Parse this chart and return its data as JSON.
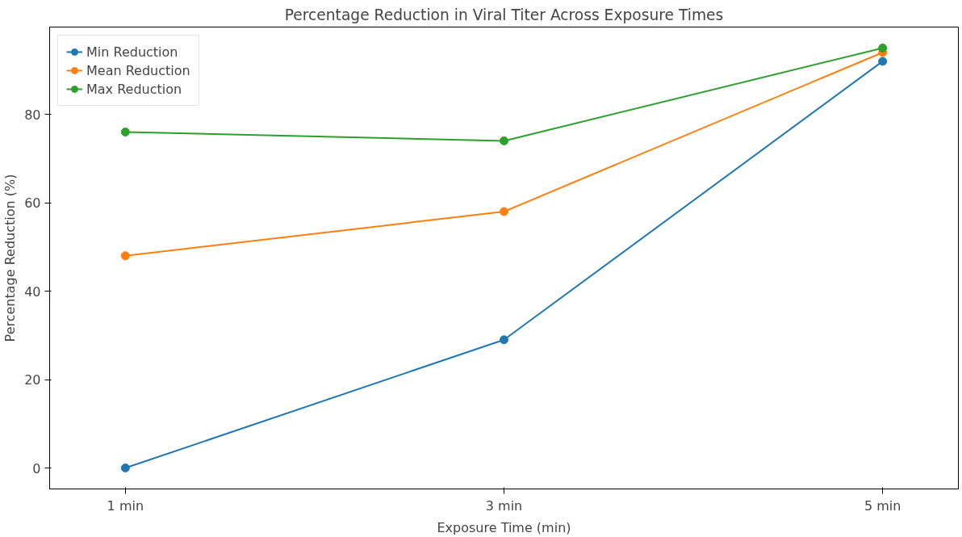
{
  "chart_data": {
    "type": "line",
    "title": "Percentage Reduction in Viral Titer Across Exposure Times",
    "xlabel": "Exposure Time (min)",
    "ylabel": "Percentage Reduction (%)",
    "categories": [
      "1 min",
      "3 min",
      "5 min"
    ],
    "series": [
      {
        "name": "Min Reduction",
        "color": "#1f77b4",
        "values": [
          0,
          29,
          92
        ]
      },
      {
        "name": "Mean Reduction",
        "color": "#ff7f0e",
        "values": [
          48,
          58,
          94
        ]
      },
      {
        "name": "Max Reduction",
        "color": "#2ca02c",
        "values": [
          76,
          74,
          95
        ]
      }
    ],
    "ylim": [
      -4.75,
      99.75
    ],
    "yticks": [
      0,
      20,
      40,
      60,
      80
    ],
    "grid": false,
    "legend": "top left",
    "marker": "circle",
    "line_style": "solid"
  }
}
